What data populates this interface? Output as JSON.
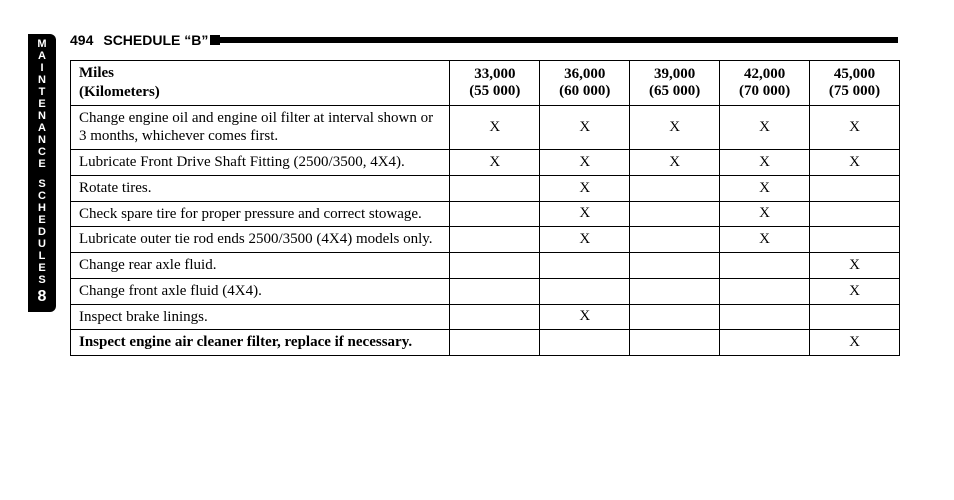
{
  "sideTab": {
    "word1": "MAINTENANCE",
    "word2": "SCHEDULES",
    "chapter": "8"
  },
  "header": {
    "pageNumber": "494",
    "title": "SCHEDULE “B”"
  },
  "table": {
    "milesLabel": "Miles",
    "kmLabel": "(Kilometers)",
    "columns": [
      {
        "miles": "33,000",
        "km": "(55 000)"
      },
      {
        "miles": "36,000",
        "km": "(60 000)"
      },
      {
        "miles": "39,000",
        "km": "(65 000)"
      },
      {
        "miles": "42,000",
        "km": "(70 000)"
      },
      {
        "miles": "45,000",
        "km": "(75 000)"
      }
    ],
    "rows": [
      {
        "desc": "Change engine oil and engine oil filter at interval shown or 3 months, whichever comes first.",
        "bold": false,
        "marks": [
          "X",
          "X",
          "X",
          "X",
          "X"
        ]
      },
      {
        "desc": "Lubricate Front Drive Shaft Fitting (2500/3500, 4X4).",
        "bold": false,
        "marks": [
          "X",
          "X",
          "X",
          "X",
          "X"
        ]
      },
      {
        "desc": "Rotate tires.",
        "bold": false,
        "marks": [
          "",
          "X",
          "",
          "X",
          ""
        ]
      },
      {
        "desc": "Check spare tire for proper pressure and correct stowage.",
        "bold": false,
        "marks": [
          "",
          "X",
          "",
          "X",
          ""
        ]
      },
      {
        "desc": "Lubricate outer tie rod ends 2500/3500 (4X4) models only.",
        "bold": false,
        "marks": [
          "",
          "X",
          "",
          "X",
          ""
        ]
      },
      {
        "desc": "Change rear axle fluid.",
        "bold": false,
        "marks": [
          "",
          "",
          "",
          "",
          "X"
        ]
      },
      {
        "desc": "Change front axle fluid (4X4).",
        "bold": false,
        "marks": [
          "",
          "",
          "",
          "",
          "X"
        ]
      },
      {
        "desc": "Inspect brake linings.",
        "bold": false,
        "marks": [
          "",
          "X",
          "",
          "",
          ""
        ]
      },
      {
        "desc": "Inspect engine air cleaner filter, replace if necessary.",
        "bold": true,
        "marks": [
          "",
          "",
          "",
          "",
          "X"
        ]
      }
    ]
  }
}
